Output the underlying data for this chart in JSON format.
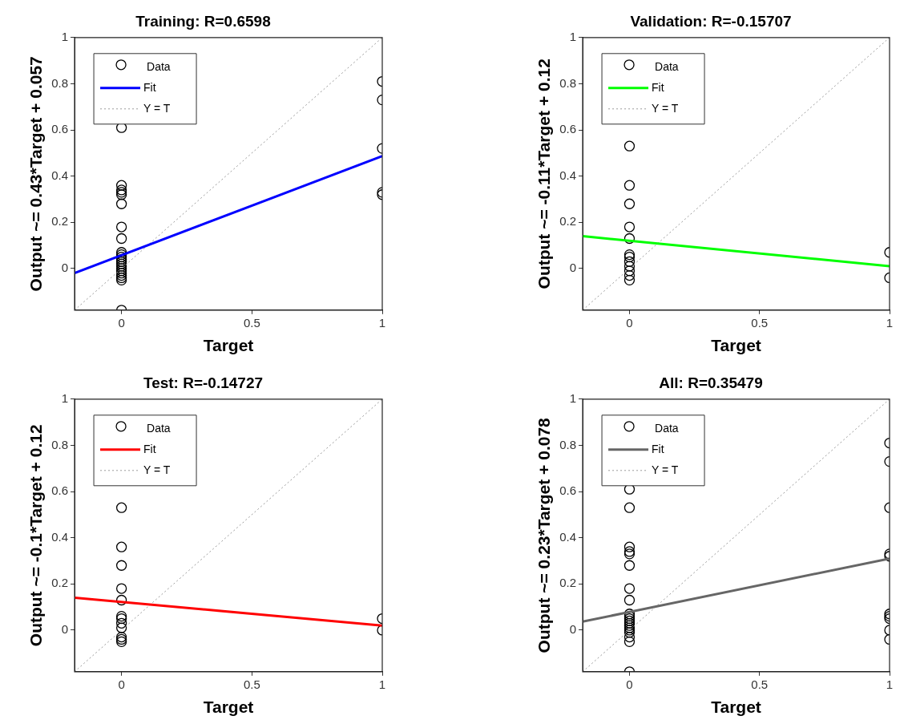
{
  "chart_data": [
    {
      "type": "scatter",
      "title": "Training: R=0.6598",
      "xlabel": "Target",
      "ylabel": "Output ~= 0.43*Target + 0.057",
      "xlim": [
        -0.18,
        1
      ],
      "ylim": [
        -0.18,
        1
      ],
      "xticks": [
        0,
        0.5,
        1
      ],
      "yticks": [
        0,
        0.2,
        0.4,
        0.6,
        0.8,
        1
      ],
      "grid": false,
      "legend": "top left",
      "series": [
        {
          "name": "Data",
          "color": "#000000",
          "marker": "circle",
          "x": [
            0,
            0,
            0,
            0,
            0,
            0,
            0,
            0,
            0,
            0,
            0,
            0,
            0,
            0,
            0,
            0,
            0,
            0,
            0,
            0,
            0,
            0,
            1,
            1,
            1,
            1,
            1
          ],
          "values": [
            0.61,
            0.36,
            0.34,
            0.33,
            0.32,
            0.28,
            0.18,
            0.13,
            0.07,
            0.06,
            0.05,
            0.04,
            0.03,
            0.02,
            0.01,
            0,
            -0.01,
            -0.02,
            -0.03,
            -0.04,
            -0.05,
            -0.18,
            0.81,
            0.73,
            0.52,
            0.33,
            0.32
          ]
        },
        {
          "name": "Fit",
          "type": "line",
          "color": "#0000ff",
          "marker": "none",
          "x": [
            -0.18,
            1
          ],
          "values": [
            -0.02,
            0.487
          ]
        },
        {
          "name": "Y = T",
          "type": "line",
          "color": "#999999",
          "marker": "none",
          "line_style": "dotted",
          "x": [
            -0.18,
            1
          ],
          "values": [
            -0.18,
            1
          ]
        }
      ]
    },
    {
      "type": "scatter",
      "title": "Validation: R=-0.15707",
      "xlabel": "Target",
      "ylabel": "Output ~= -0.11*Target + 0.12",
      "xlim": [
        -0.18,
        1
      ],
      "ylim": [
        -0.18,
        1
      ],
      "xticks": [
        0,
        0.5,
        1
      ],
      "yticks": [
        0,
        0.2,
        0.4,
        0.6,
        0.8,
        1
      ],
      "grid": false,
      "legend": "top left",
      "series": [
        {
          "name": "Data",
          "color": "#000000",
          "marker": "circle",
          "x": [
            0,
            0,
            0,
            0,
            0,
            0,
            0,
            0,
            0,
            0,
            0,
            0,
            1,
            1
          ],
          "values": [
            0.53,
            0.36,
            0.28,
            0.18,
            0.13,
            0.06,
            0.05,
            0.03,
            0.01,
            -0.01,
            -0.03,
            -0.05,
            0.07,
            -0.04
          ]
        },
        {
          "name": "Fit",
          "type": "line",
          "color": "#00ff00",
          "marker": "none",
          "x": [
            -0.18,
            1
          ],
          "values": [
            0.14,
            0.01
          ]
        },
        {
          "name": "Y = T",
          "type": "line",
          "color": "#999999",
          "marker": "none",
          "line_style": "dotted",
          "x": [
            -0.18,
            1
          ],
          "values": [
            -0.18,
            1
          ]
        }
      ]
    },
    {
      "type": "scatter",
      "title": "Test: R=-0.14727",
      "xlabel": "Target",
      "ylabel": "Output ~= -0.1*Target + 0.12",
      "xlim": [
        -0.18,
        1
      ],
      "ylim": [
        -0.18,
        1
      ],
      "xticks": [
        0,
        0.5,
        1
      ],
      "yticks": [
        0,
        0.2,
        0.4,
        0.6,
        0.8,
        1
      ],
      "grid": false,
      "legend": "top left",
      "series": [
        {
          "name": "Data",
          "color": "#000000",
          "marker": "circle",
          "x": [
            0,
            0,
            0,
            0,
            0,
            0,
            0,
            0,
            0,
            0,
            0,
            0,
            1,
            1
          ],
          "values": [
            0.53,
            0.36,
            0.28,
            0.18,
            0.13,
            0.06,
            0.05,
            0.03,
            0.01,
            -0.03,
            -0.04,
            -0.05,
            0.05,
            0
          ]
        },
        {
          "name": "Fit",
          "type": "line",
          "color": "#ff0000",
          "marker": "none",
          "x": [
            -0.18,
            1
          ],
          "values": [
            0.14,
            0.02
          ]
        },
        {
          "name": "Y = T",
          "type": "line",
          "color": "#999999",
          "marker": "none",
          "line_style": "dotted",
          "x": [
            -0.18,
            1
          ],
          "values": [
            -0.18,
            1
          ]
        }
      ]
    },
    {
      "type": "scatter",
      "title": "All: R=0.35479",
      "xlabel": "Target",
      "ylabel": "Output ~= 0.23*Target + 0.078",
      "xlim": [
        -0.18,
        1
      ],
      "ylim": [
        -0.18,
        1
      ],
      "xticks": [
        0,
        0.5,
        1
      ],
      "yticks": [
        0,
        0.2,
        0.4,
        0.6,
        0.8,
        1
      ],
      "grid": false,
      "legend": "top left",
      "series": [
        {
          "name": "Data",
          "color": "#000000",
          "marker": "circle",
          "x": [
            0,
            0,
            0,
            0,
            0,
            0,
            0,
            0,
            0,
            0,
            0,
            0,
            0,
            0,
            0,
            0,
            0,
            0,
            0,
            0,
            1,
            1,
            1,
            1,
            1,
            1,
            1,
            1,
            1,
            1
          ],
          "values": [
            0.61,
            0.53,
            0.36,
            0.34,
            0.33,
            0.28,
            0.18,
            0.13,
            0.07,
            0.06,
            0.05,
            0.04,
            0.03,
            0.02,
            0.01,
            0,
            -0.01,
            -0.03,
            -0.05,
            -0.18,
            0.81,
            0.73,
            0.53,
            0.33,
            0.32,
            0.07,
            0.06,
            0.05,
            0,
            -0.04
          ]
        },
        {
          "name": "Fit",
          "type": "line",
          "color": "#666666",
          "marker": "none",
          "x": [
            -0.18,
            1
          ],
          "values": [
            0.037,
            0.31
          ]
        },
        {
          "name": "Y = T",
          "type": "line",
          "color": "#999999",
          "marker": "none",
          "line_style": "dotted",
          "x": [
            -0.18,
            1
          ],
          "values": [
            -0.18,
            1
          ]
        }
      ]
    }
  ]
}
